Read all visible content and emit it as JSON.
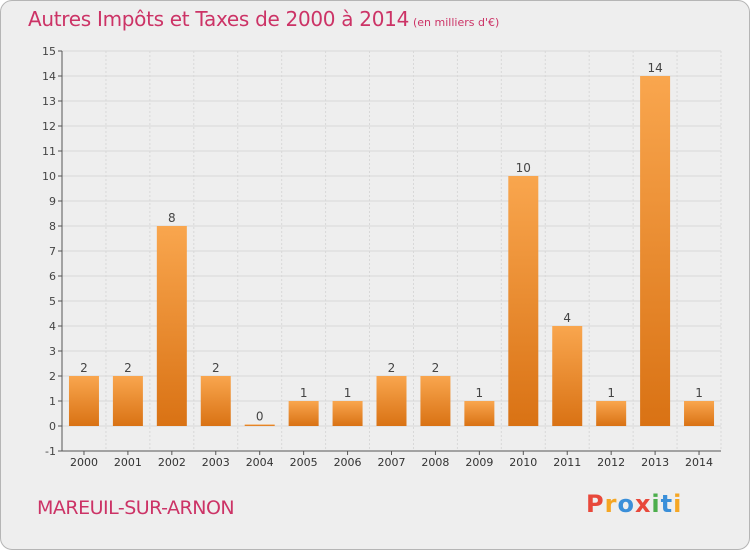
{
  "title": "Autres Impôts et Taxes de 2000 à 2014",
  "subtitle": "(en milliers d'€)",
  "location": "MAREUIL-SUR-ARNON",
  "brand": "Proxiti",
  "colors": {
    "title": "#cc3366",
    "bar_top": "#f9a64e",
    "bar_bottom": "#d97214",
    "background": "#eeeeee",
    "grid": "#d8d8d8",
    "logo": [
      "#e8483b",
      "#f5a623",
      "#3a8fd9",
      "#e8483b",
      "#4cae4c",
      "#3a8fd9",
      "#f5a623"
    ]
  },
  "chart_data": {
    "type": "bar",
    "title": "Autres Impôts et Taxes de 2000 à 2014",
    "subtitle": "(en milliers d'€)",
    "categories": [
      "2000",
      "2001",
      "2002",
      "2003",
      "2004",
      "2005",
      "2006",
      "2007",
      "2008",
      "2009",
      "2010",
      "2011",
      "2012",
      "2013",
      "2014"
    ],
    "values": [
      2,
      2,
      8,
      2,
      0,
      1,
      1,
      2,
      2,
      1,
      10,
      4,
      1,
      14,
      1
    ],
    "ylim": [
      -1,
      15
    ],
    "yticks": [
      -1,
      0,
      1,
      2,
      3,
      4,
      5,
      6,
      7,
      8,
      9,
      10,
      11,
      12,
      13,
      14,
      15
    ],
    "xlabel": "",
    "ylabel": "",
    "grid": true,
    "legend": "none"
  }
}
